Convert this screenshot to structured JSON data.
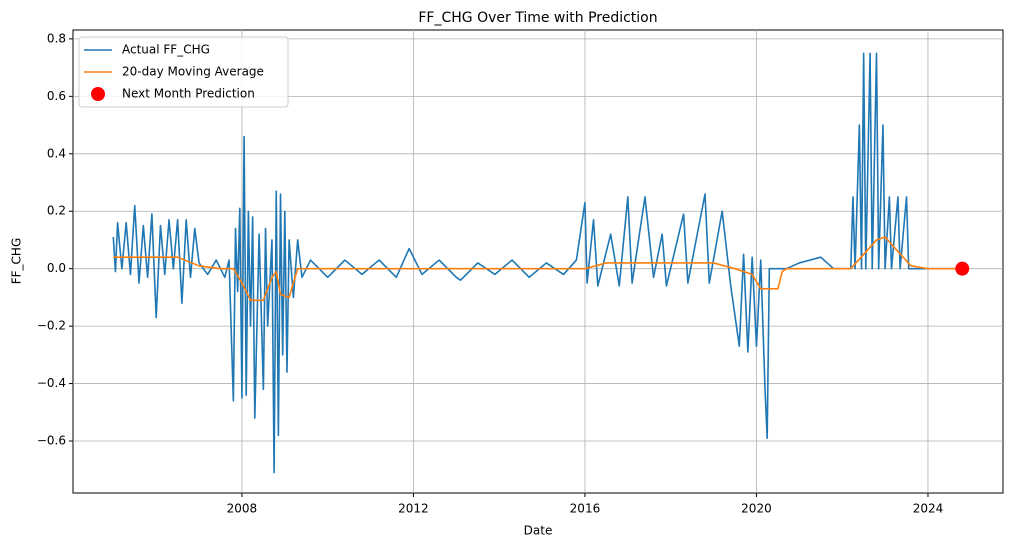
{
  "chart_data": {
    "type": "line",
    "title": "FF_CHG Over Time with Prediction",
    "xlabel": "Date",
    "ylabel": "FF_CHG",
    "xlim": [
      2004.06,
      2025.75
    ],
    "xticks": [
      2008,
      2012,
      2016,
      2020,
      2024
    ],
    "ylim": [
      -0.781,
      0.831
    ],
    "yticks": [
      {
        "value": -0.6,
        "label": "−0.6"
      },
      {
        "value": -0.4,
        "label": "−0.4"
      },
      {
        "value": -0.2,
        "label": "−0.2"
      },
      {
        "value": 0,
        "label": "0.0"
      },
      {
        "value": 0.2,
        "label": "0.2"
      },
      {
        "value": 0.4,
        "label": "0.4"
      },
      {
        "value": 0.6,
        "label": "0.6"
      },
      {
        "value": 0.8,
        "label": "0.8"
      }
    ],
    "grid": true,
    "legend": "upper left",
    "series": [
      {
        "name": "Actual FF_CHG",
        "color": "#1f77b4",
        "kind": "line",
        "x": [
          2005.0,
          2005.05,
          2005.1,
          2005.2,
          2005.3,
          2005.4,
          2005.5,
          2005.6,
          2005.7,
          2005.8,
          2005.9,
          2006.0,
          2006.1,
          2006.2,
          2006.3,
          2006.4,
          2006.5,
          2006.6,
          2006.7,
          2006.8,
          2006.9,
          2007.0,
          2007.2,
          2007.4,
          2007.6,
          2007.7,
          2007.8,
          2007.85,
          2007.9,
          2007.95,
          2008.0,
          2008.05,
          2008.1,
          2008.15,
          2008.2,
          2008.25,
          2008.3,
          2008.4,
          2008.5,
          2008.55,
          2008.6,
          2008.7,
          2008.75,
          2008.8,
          2008.85,
          2008.9,
          2008.95,
          2009.0,
          2009.05,
          2009.1,
          2009.2,
          2009.3,
          2009.4,
          2009.6,
          2010.0,
          2010.4,
          2010.8,
          2011.2,
          2011.6,
          2011.9,
          2012.2,
          2012.6,
          2013.0,
          2013.1,
          2013.5,
          2013.9,
          2014.3,
          2014.7,
          2015.1,
          2015.5,
          2015.8,
          2016.0,
          2016.05,
          2016.2,
          2016.3,
          2016.6,
          2016.8,
          2017.0,
          2017.1,
          2017.4,
          2017.6,
          2017.8,
          2017.9,
          2018.3,
          2018.4,
          2018.8,
          2018.9,
          2019.2,
          2019.4,
          2019.6,
          2019.7,
          2019.8,
          2019.9,
          2020.0,
          2020.1,
          2020.2,
          2020.25,
          2020.3,
          2020.7,
          2021.0,
          2021.5,
          2021.8,
          2022.2,
          2022.25,
          2022.3,
          2022.4,
          2022.45,
          2022.5,
          2022.55,
          2022.65,
          2022.7,
          2022.8,
          2022.85,
          2022.95,
          2023.0,
          2023.1,
          2023.15,
          2023.3,
          2023.35,
          2023.5,
          2023.55,
          2023.8,
          2024.7
        ],
        "values": [
          0.11,
          -0.01,
          0.16,
          0.0,
          0.16,
          -0.02,
          0.22,
          -0.05,
          0.15,
          -0.03,
          0.19,
          -0.17,
          0.15,
          -0.02,
          0.17,
          0.0,
          0.17,
          -0.12,
          0.17,
          -0.03,
          0.14,
          0.02,
          -0.02,
          0.03,
          -0.03,
          0.03,
          -0.46,
          0.14,
          -0.08,
          0.21,
          -0.45,
          0.46,
          -0.44,
          0.2,
          -0.2,
          0.18,
          -0.52,
          0.12,
          -0.42,
          0.14,
          -0.2,
          0.1,
          -0.71,
          0.27,
          -0.58,
          0.26,
          -0.3,
          0.2,
          -0.36,
          0.1,
          -0.1,
          0.1,
          -0.03,
          0.03,
          -0.03,
          0.03,
          -0.02,
          0.03,
          -0.03,
          0.07,
          -0.02,
          0.03,
          -0.03,
          -0.04,
          0.02,
          -0.02,
          0.03,
          -0.03,
          0.02,
          -0.02,
          0.03,
          0.23,
          -0.05,
          0.17,
          -0.06,
          0.12,
          -0.06,
          0.25,
          -0.05,
          0.25,
          -0.03,
          0.12,
          -0.06,
          0.19,
          -0.05,
          0.26,
          -0.05,
          0.2,
          -0.06,
          -0.27,
          0.05,
          -0.29,
          0.04,
          -0.27,
          0.03,
          -0.42,
          -0.59,
          0.0,
          0.0,
          0.02,
          0.04,
          0.0,
          0.0,
          0.25,
          0.0,
          0.5,
          0.0,
          0.75,
          0.0,
          0.75,
          0.0,
          0.75,
          0.0,
          0.5,
          0.0,
          0.25,
          0.0,
          0.25,
          0.0,
          0.25,
          0.0,
          0.0,
          0.0
        ]
      },
      {
        "name": "20-day Moving Average",
        "color": "#ff7f0e",
        "kind": "line",
        "x": [
          2005.0,
          2005.5,
          2006.0,
          2006.5,
          2007.0,
          2007.5,
          2007.8,
          2008.0,
          2008.2,
          2008.5,
          2008.7,
          2008.8,
          2008.9,
          2009.1,
          2009.3,
          2012,
          2016,
          2016.5,
          2017.5,
          2018,
          2019,
          2019.5,
          2019.9,
          2020.1,
          2020.5,
          2020.6,
          2020.7,
          2022.2,
          2022.5,
          2022.8,
          2023.0,
          2023.3,
          2023.6,
          2024.0,
          2024.7
        ],
        "values": [
          0.04,
          0.04,
          0.04,
          0.04,
          0.01,
          0.0,
          0.0,
          -0.05,
          -0.11,
          -0.11,
          -0.03,
          -0.01,
          -0.09,
          -0.1,
          0.0,
          0.0,
          0.0,
          0.02,
          0.02,
          0.02,
          0.02,
          0.0,
          -0.02,
          -0.07,
          -0.07,
          -0.01,
          0.0,
          0.0,
          0.05,
          0.1,
          0.11,
          0.06,
          0.01,
          0.0,
          0.0
        ]
      },
      {
        "name": "Next Month Prediction",
        "color": "#ff0000",
        "kind": "scatter",
        "x": [
          2024.8
        ],
        "values": [
          0.0
        ]
      }
    ]
  }
}
